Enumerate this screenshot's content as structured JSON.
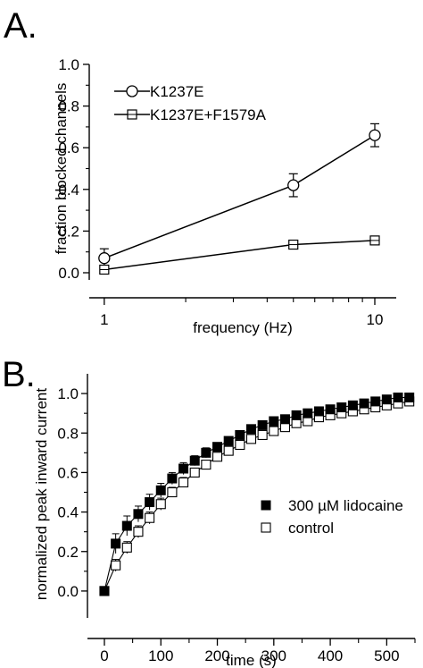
{
  "panels": {
    "a_label": "A.",
    "b_label": "B."
  },
  "chart_data": [
    {
      "type": "line",
      "panel": "A",
      "xlabel": "frequency (Hz)",
      "ylabel": "fraction blocked channels",
      "x_scale": "log",
      "xlim": [
        1,
        10
      ],
      "ylim": [
        0,
        1.0
      ],
      "xticks": [
        "1",
        "10"
      ],
      "yticks": [
        "0.0",
        "0.2",
        "0.4",
        "0.6",
        "0.8",
        "1.0"
      ],
      "legend_position": "top-left",
      "grid": false,
      "series": [
        {
          "name": "K1237E",
          "marker": "circle",
          "x": [
            1,
            5,
            10
          ],
          "y": [
            0.07,
            0.42,
            0.66
          ],
          "err": [
            0.045,
            0.055,
            0.055
          ]
        },
        {
          "name": "K1237E+F1579A",
          "marker": "square-cross",
          "x": [
            1,
            5,
            10
          ],
          "y": [
            0.015,
            0.135,
            0.155
          ],
          "err": [
            0.02,
            0.015,
            0.015
          ]
        }
      ]
    },
    {
      "type": "line",
      "panel": "B",
      "xlabel": "time (s)",
      "ylabel": "normalized peak inward current",
      "xlim": [
        -30,
        550
      ],
      "ylim": [
        -0.1,
        1.1
      ],
      "xticks": [
        "0",
        "100",
        "200",
        "300",
        "400",
        "500"
      ],
      "yticks": [
        "0.0",
        "0.2",
        "0.4",
        "0.6",
        "0.8",
        "1.0"
      ],
      "legend_position": "center-right",
      "grid": false,
      "series": [
        {
          "name": "300 µM lidocaine",
          "marker": "filled-square",
          "x": [
            0,
            20,
            40,
            60,
            80,
            100,
            120,
            140,
            160,
            180,
            200,
            220,
            240,
            260,
            280,
            300,
            320,
            340,
            360,
            380,
            400,
            420,
            440,
            460,
            480,
            500,
            520,
            540
          ],
          "y": [
            0.0,
            0.24,
            0.33,
            0.39,
            0.45,
            0.51,
            0.57,
            0.62,
            0.66,
            0.7,
            0.73,
            0.76,
            0.79,
            0.82,
            0.84,
            0.86,
            0.87,
            0.89,
            0.9,
            0.91,
            0.92,
            0.93,
            0.94,
            0.95,
            0.96,
            0.97,
            0.98,
            0.98
          ],
          "err": [
            0.0,
            0.05,
            0.05,
            0.04,
            0.04,
            0.035,
            0.03,
            0.03,
            0.025,
            0.025,
            0.02,
            0.02,
            0.02,
            0.02,
            0.02,
            0.02,
            0.02,
            0.02,
            0.02,
            0.02,
            0.02,
            0.02,
            0.02,
            0.02,
            0.02,
            0.02,
            0.02,
            0.02
          ]
        },
        {
          "name": "control",
          "marker": "open-square",
          "x": [
            0,
            20,
            40,
            60,
            80,
            100,
            120,
            140,
            160,
            180,
            200,
            220,
            240,
            260,
            280,
            300,
            320,
            340,
            360,
            380,
            400,
            420,
            440,
            460,
            480,
            500,
            520,
            540
          ],
          "y": [
            0.0,
            0.13,
            0.22,
            0.3,
            0.37,
            0.44,
            0.5,
            0.55,
            0.6,
            0.64,
            0.68,
            0.71,
            0.74,
            0.77,
            0.79,
            0.81,
            0.83,
            0.85,
            0.86,
            0.88,
            0.89,
            0.9,
            0.91,
            0.92,
            0.93,
            0.94,
            0.95,
            0.96
          ],
          "err": [
            0.0,
            0.03,
            0.03,
            0.03,
            0.03,
            0.03,
            0.025,
            0.025,
            0.02,
            0.02,
            0.02,
            0.02,
            0.02,
            0.02,
            0.02,
            0.02,
            0.02,
            0.02,
            0.02,
            0.02,
            0.02,
            0.02,
            0.02,
            0.02,
            0.02,
            0.02,
            0.02,
            0.02
          ]
        }
      ]
    }
  ]
}
